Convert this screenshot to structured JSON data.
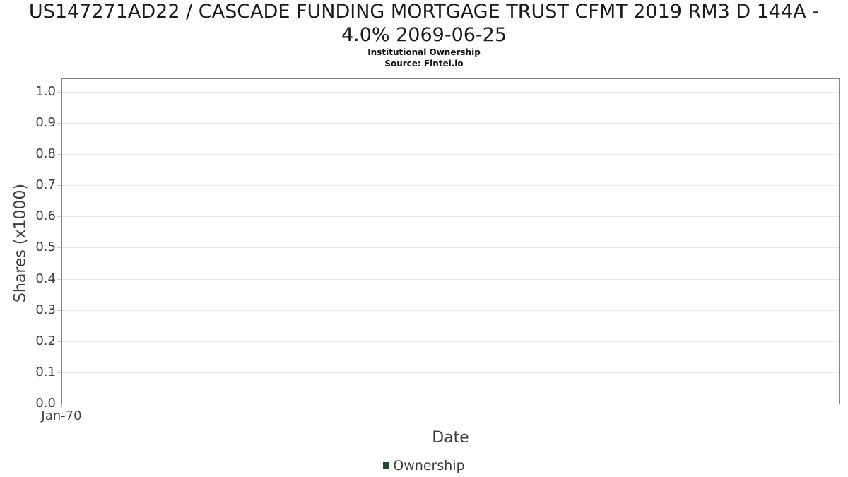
{
  "header": {
    "title_lines": [
      "US147271AD22 / CASCADE FUNDING MORTGAGE TRUST CFMT 2019 RM3 D 144A -",
      "4.0% 2069-06-25"
    ],
    "subtitle": "Institutional Ownership",
    "source": "Source: Fintel.io"
  },
  "chart_data": {
    "type": "line",
    "title": "US147271AD22 / CASCADE FUNDING MORTGAGE TRUST CFMT 2019 RM3 D 144A - 4.0% 2069-06-25",
    "subtitle": "Institutional Ownership",
    "source": "Source: Fintel.io",
    "xlabel": "Date",
    "ylabel": "Shares (x1000)",
    "xticks": [
      "Jan-70"
    ],
    "yticks": [
      "0.0",
      "0.1",
      "0.2",
      "0.3",
      "0.4",
      "0.5",
      "0.6",
      "0.7",
      "0.8",
      "0.9",
      "1.0"
    ],
    "ylim": [
      0.0,
      1.045
    ],
    "grid": true,
    "legend_position": "bottom",
    "series": [
      {
        "name": "Ownership",
        "color": "#1e4a2c",
        "x": [],
        "values": []
      }
    ]
  },
  "colors": {
    "accent_green": "#1e4a2c",
    "spine": "#838383",
    "gridline": "#e9e9e9",
    "tick_mark": "#c9c9c9",
    "axis_text": "#3d3d3d",
    "title_text": "#1a1a1a"
  }
}
